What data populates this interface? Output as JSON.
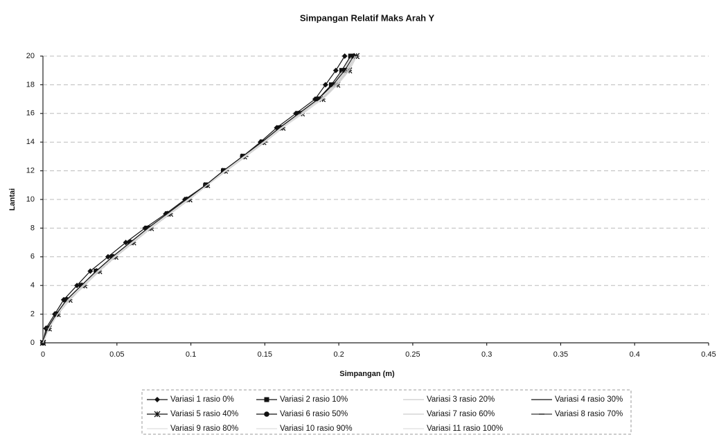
{
  "chart_data": {
    "type": "line",
    "title": "Simpangan Relatif Maks Arah Y",
    "x_label": "Simpangan (m)",
    "y_label": "Lantai",
    "xlim": [
      0,
      0.45
    ],
    "xticks": [
      0,
      0.05,
      0.1,
      0.15,
      0.2,
      0.25,
      0.3,
      0.35,
      0.4,
      0.45
    ],
    "ylim": [
      0,
      20
    ],
    "yticks": [
      0,
      2,
      4,
      6,
      8,
      10,
      12,
      14,
      16,
      18,
      20
    ],
    "grid": true,
    "series": [
      {
        "name": "Variasi 1 rasio 0%",
        "color": "#111111",
        "marker": "diamond",
        "x": [
          0,
          0.002,
          0.008,
          0.014,
          0.023,
          0.032,
          0.044,
          0.056,
          0.069,
          0.083,
          0.096,
          0.11,
          0.122,
          0.135,
          0.147,
          0.158,
          0.171,
          0.184,
          0.191,
          0.198,
          0.204
        ],
        "values": [
          0,
          1,
          2,
          3,
          4,
          5,
          6,
          7,
          8,
          9,
          10,
          11,
          12,
          13,
          14,
          15,
          16,
          17,
          18,
          19,
          20
        ]
      },
      {
        "name": "Variasi 2 rasio 10%",
        "color": "#111111",
        "marker": "square",
        "x": [
          0,
          0.003,
          0.009,
          0.016,
          0.026,
          0.036,
          0.047,
          0.059,
          0.071,
          0.084,
          0.097,
          0.11,
          0.122,
          0.135,
          0.148,
          0.16,
          0.173,
          0.186,
          0.195,
          0.202,
          0.208
        ],
        "values": [
          0,
          1,
          2,
          3,
          4,
          5,
          6,
          7,
          8,
          9,
          10,
          11,
          12,
          13,
          14,
          15,
          16,
          17,
          18,
          19,
          20
        ]
      },
      {
        "name": "Variasi 3 rasio 20%",
        "color": "#cccccc",
        "marker": "none",
        "x": [
          0,
          0.003,
          0.009,
          0.016,
          0.026,
          0.036,
          0.047,
          0.059,
          0.071,
          0.084,
          0.097,
          0.11,
          0.122,
          0.135,
          0.148,
          0.16,
          0.174,
          0.187,
          0.196,
          0.203,
          0.209
        ],
        "values": [
          0,
          1,
          2,
          3,
          4,
          5,
          6,
          7,
          8,
          9,
          10,
          11,
          12,
          13,
          14,
          15,
          16,
          17,
          18,
          19,
          20
        ]
      },
      {
        "name": "Variasi 4 rasio 30%",
        "color": "#111111",
        "marker": "none",
        "x": [
          0,
          0.004,
          0.01,
          0.018,
          0.028,
          0.038,
          0.049,
          0.061,
          0.073,
          0.086,
          0.098,
          0.111,
          0.123,
          0.136,
          0.149,
          0.161,
          0.175,
          0.188,
          0.198,
          0.206,
          0.211
        ],
        "values": [
          0,
          1,
          2,
          3,
          4,
          5,
          6,
          7,
          8,
          9,
          10,
          11,
          12,
          13,
          14,
          15,
          16,
          17,
          18,
          19,
          20
        ]
      },
      {
        "name": "Variasi 5 rasio 40%",
        "color": "#111111",
        "marker": "star",
        "x": [
          0,
          0.004,
          0.01,
          0.018,
          0.028,
          0.038,
          0.049,
          0.061,
          0.073,
          0.086,
          0.099,
          0.111,
          0.123,
          0.136,
          0.149,
          0.162,
          0.175,
          0.189,
          0.199,
          0.207,
          0.212
        ],
        "values": [
          0,
          1,
          2,
          3,
          4,
          5,
          6,
          7,
          8,
          9,
          10,
          11,
          12,
          13,
          14,
          15,
          16,
          17,
          18,
          19,
          20
        ]
      },
      {
        "name": "Variasi 6 rasio 50%",
        "color": "#111111",
        "marker": "circle",
        "x": [
          0,
          0.003,
          0.009,
          0.016,
          0.026,
          0.036,
          0.047,
          0.059,
          0.071,
          0.084,
          0.097,
          0.11,
          0.122,
          0.135,
          0.148,
          0.16,
          0.173,
          0.186,
          0.196,
          0.204,
          0.21
        ],
        "values": [
          0,
          1,
          2,
          3,
          4,
          5,
          6,
          7,
          8,
          9,
          10,
          11,
          12,
          13,
          14,
          15,
          16,
          17,
          18,
          19,
          20
        ]
      },
      {
        "name": "Variasi 7 rasio 60%",
        "color": "#cccccc",
        "marker": "none",
        "x": [
          0,
          0.004,
          0.01,
          0.017,
          0.027,
          0.037,
          0.048,
          0.06,
          0.072,
          0.085,
          0.098,
          0.111,
          0.123,
          0.136,
          0.149,
          0.161,
          0.174,
          0.188,
          0.197,
          0.205,
          0.211
        ],
        "values": [
          0,
          1,
          2,
          3,
          4,
          5,
          6,
          7,
          8,
          9,
          10,
          11,
          12,
          13,
          14,
          15,
          16,
          17,
          18,
          19,
          20
        ]
      },
      {
        "name": "Variasi 8 rasio 70%",
        "color": "#333333",
        "marker": "dash",
        "x": [
          0,
          0.004,
          0.01,
          0.018,
          0.028,
          0.038,
          0.049,
          0.061,
          0.073,
          0.086,
          0.099,
          0.111,
          0.124,
          0.137,
          0.15,
          0.162,
          0.175,
          0.189,
          0.199,
          0.207,
          0.212
        ],
        "values": [
          0,
          1,
          2,
          3,
          4,
          5,
          6,
          7,
          8,
          9,
          10,
          11,
          12,
          13,
          14,
          15,
          16,
          17,
          18,
          19,
          20
        ]
      },
      {
        "name": "Variasi 9 rasio 80%",
        "color": "#dddddd",
        "marker": "none",
        "x": [
          0,
          0.004,
          0.01,
          0.018,
          0.028,
          0.038,
          0.049,
          0.061,
          0.073,
          0.086,
          0.099,
          0.111,
          0.123,
          0.136,
          0.149,
          0.162,
          0.175,
          0.189,
          0.199,
          0.207,
          0.212
        ],
        "values": [
          0,
          1,
          2,
          3,
          4,
          5,
          6,
          7,
          8,
          9,
          10,
          11,
          12,
          13,
          14,
          15,
          16,
          17,
          18,
          19,
          20
        ]
      },
      {
        "name": "Variasi 10 rasio 90%",
        "color": "#dddddd",
        "marker": "none",
        "x": [
          0,
          0.004,
          0.01,
          0.017,
          0.027,
          0.037,
          0.048,
          0.06,
          0.072,
          0.085,
          0.098,
          0.111,
          0.123,
          0.136,
          0.149,
          0.161,
          0.175,
          0.188,
          0.198,
          0.206,
          0.211
        ],
        "values": [
          0,
          1,
          2,
          3,
          4,
          5,
          6,
          7,
          8,
          9,
          10,
          11,
          12,
          13,
          14,
          15,
          16,
          17,
          18,
          19,
          20
        ]
      },
      {
        "name": "Variasi 11 rasio 100%",
        "color": "#dddddd",
        "marker": "none",
        "x": [
          0,
          0.004,
          0.01,
          0.018,
          0.028,
          0.038,
          0.049,
          0.061,
          0.073,
          0.086,
          0.099,
          0.111,
          0.124,
          0.137,
          0.15,
          0.162,
          0.176,
          0.189,
          0.199,
          0.207,
          0.212
        ],
        "values": [
          0,
          1,
          2,
          3,
          4,
          5,
          6,
          7,
          8,
          9,
          10,
          11,
          12,
          13,
          14,
          15,
          16,
          17,
          18,
          19,
          20
        ]
      }
    ]
  }
}
